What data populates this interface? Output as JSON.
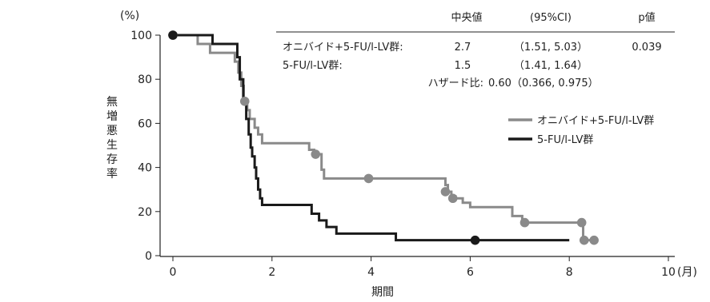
{
  "chart_data": {
    "type": "line",
    "y_unit": "(%)",
    "x_unit": "(月)",
    "xlabel": "期間",
    "ylabel": "無増悪生存率",
    "xlim": [
      0,
      10
    ],
    "ylim": [
      0,
      100
    ],
    "x_ticks": [
      0,
      2,
      4,
      6,
      8,
      10
    ],
    "y_ticks": [
      0,
      20,
      40,
      60,
      80,
      100
    ],
    "legend_position": "right",
    "series": [
      {
        "name": "オニバイド+5-FU/l-LV群",
        "color": "#8a8a8a",
        "steps": [
          [
            0,
            100
          ],
          [
            0.5,
            96
          ],
          [
            0.75,
            92
          ],
          [
            1.15,
            92
          ],
          [
            1.25,
            88
          ],
          [
            1.32,
            83
          ],
          [
            1.38,
            77
          ],
          [
            1.43,
            70
          ],
          [
            1.5,
            66
          ],
          [
            1.55,
            62
          ],
          [
            1.65,
            58
          ],
          [
            1.72,
            55
          ],
          [
            1.8,
            51
          ],
          [
            2.7,
            51
          ],
          [
            2.75,
            48
          ],
          [
            2.85,
            46
          ],
          [
            2.95,
            46
          ],
          [
            3.0,
            39
          ],
          [
            3.05,
            35
          ],
          [
            5.45,
            35
          ],
          [
            5.5,
            32
          ],
          [
            5.55,
            29
          ],
          [
            5.62,
            27
          ],
          [
            5.7,
            26
          ],
          [
            5.85,
            24
          ],
          [
            6.0,
            22
          ],
          [
            6.8,
            22
          ],
          [
            6.85,
            18
          ],
          [
            7.05,
            15
          ],
          [
            8.25,
            15
          ],
          [
            8.28,
            7
          ],
          [
            8.5,
            7
          ]
        ],
        "censored": [
          [
            0,
            100
          ],
          [
            1.45,
            70
          ],
          [
            2.88,
            46
          ],
          [
            3.95,
            35
          ],
          [
            5.5,
            29
          ],
          [
            5.65,
            26
          ],
          [
            7.1,
            15
          ],
          [
            8.25,
            15
          ],
          [
            8.3,
            7
          ],
          [
            8.5,
            7
          ]
        ]
      },
      {
        "name": "5-FU/l-LV群",
        "color": "#1a1a1a",
        "steps": [
          [
            0,
            100
          ],
          [
            0.75,
            100
          ],
          [
            0.8,
            96
          ],
          [
            1.25,
            96
          ],
          [
            1.3,
            90
          ],
          [
            1.35,
            80
          ],
          [
            1.42,
            70
          ],
          [
            1.48,
            62
          ],
          [
            1.53,
            55
          ],
          [
            1.57,
            49
          ],
          [
            1.6,
            45
          ],
          [
            1.65,
            40
          ],
          [
            1.68,
            35
          ],
          [
            1.72,
            30
          ],
          [
            1.76,
            26
          ],
          [
            1.8,
            23
          ],
          [
            2.7,
            23
          ],
          [
            2.8,
            19
          ],
          [
            2.95,
            16
          ],
          [
            3.1,
            13
          ],
          [
            3.3,
            10
          ],
          [
            4.45,
            10
          ],
          [
            4.5,
            7
          ],
          [
            8,
            7
          ]
        ],
        "censored": [
          [
            0,
            100
          ],
          [
            6.1,
            7
          ]
        ]
      }
    ],
    "table": {
      "headers": [
        "中央値",
        "(95%CI)",
        "p値"
      ],
      "rows": [
        {
          "label": "オニバイド+5-FU/l-LV群:",
          "median": "2.7",
          "ci": "（1.51, 5.03）",
          "p": "0.039"
        },
        {
          "label": "5-FU/l-LV群:",
          "median": "1.5",
          "ci": "（1.41, 1.64）",
          "p": ""
        }
      ],
      "hazard_label": "ハザード比:",
      "hazard_value": "0.60（0.366, 0.975）"
    }
  }
}
